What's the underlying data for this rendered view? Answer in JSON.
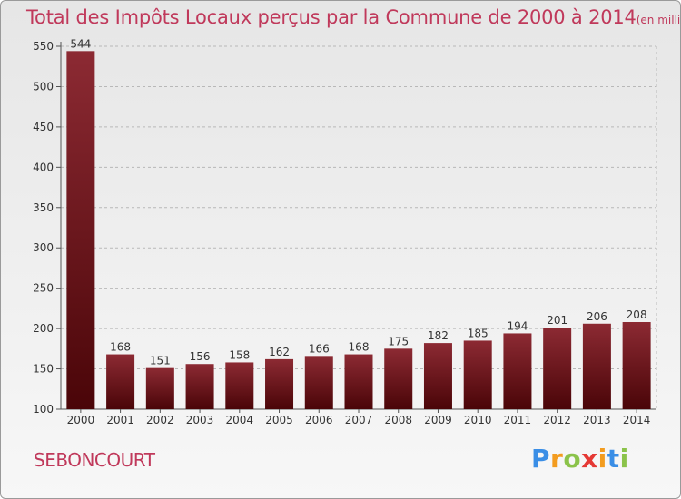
{
  "title": "Total des Impôts Locaux perçus par la Commune de 2000 à 2014",
  "title_unit": "(en milliers d'€)",
  "commune": "SEBONCOURT",
  "brand": {
    "letters": [
      "P",
      "r",
      "o",
      "x",
      "i",
      "t",
      "i"
    ],
    "colors": [
      "#3a8ee6",
      "#f39c1f",
      "#8bc34a",
      "#e53935",
      "#f39c1f",
      "#3a8ee6",
      "#8bc34a"
    ]
  },
  "colors": {
    "bar_top": "#8c2a33",
    "bar_bottom": "#4a0508",
    "grid": "#b8b8b8",
    "title": "#c0395b"
  },
  "chart_data": {
    "type": "bar",
    "categories": [
      "2000",
      "2001",
      "2002",
      "2003",
      "2004",
      "2005",
      "2006",
      "2007",
      "2008",
      "2009",
      "2010",
      "2011",
      "2012",
      "2013",
      "2014"
    ],
    "values": [
      544,
      168,
      151,
      156,
      158,
      162,
      166,
      168,
      175,
      182,
      185,
      194,
      201,
      206,
      208
    ],
    "ylim": [
      100,
      550
    ],
    "yticks": [
      100,
      150,
      200,
      250,
      300,
      350,
      400,
      450,
      500,
      550
    ],
    "grid": true,
    "data_labels": true
  }
}
